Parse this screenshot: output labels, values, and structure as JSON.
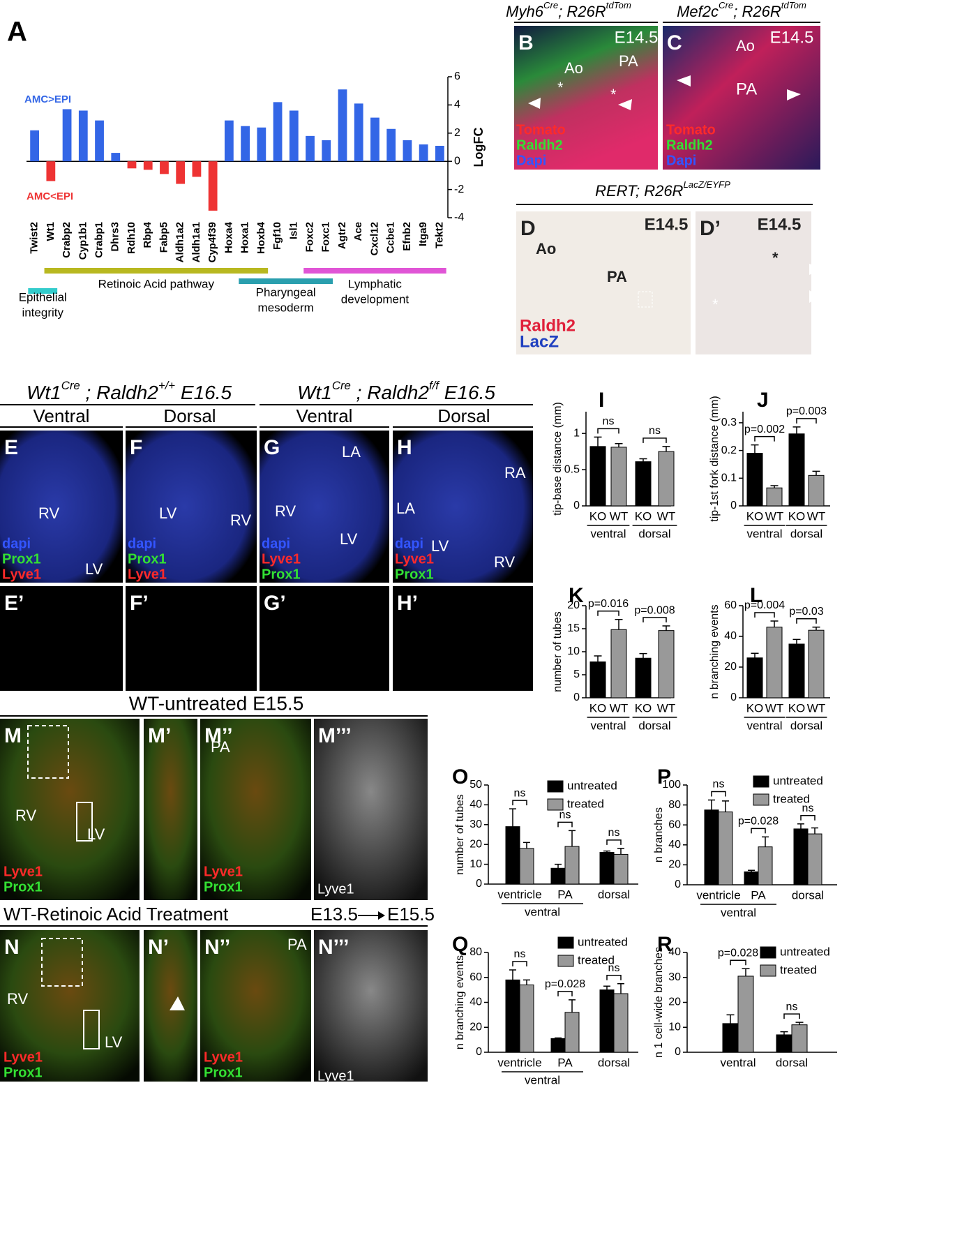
{
  "chart_data": [
    {
      "type": "bar",
      "panel": "A",
      "ylabel": "LogFC",
      "categories": [
        "Twist2",
        "Wt1",
        "Crabp2",
        "Cyp1b1",
        "Crabp1",
        "Dhrs3",
        "Rdh10",
        "Rbp4",
        "Fabp5",
        "Aldh1a2",
        "Aldh1a1",
        "Cyp4f39",
        "Hoxa4",
        "Hoxa1",
        "Hoxb4",
        "Fgf10",
        "Isl1",
        "Foxc2",
        "Foxc1",
        "Agtr2",
        "Ace",
        "Cxcl12",
        "Ccbe1",
        "Efnb2",
        "Itga9",
        "Tekt2"
      ],
      "values": [
        2.2,
        -1.4,
        3.7,
        3.6,
        2.9,
        0.6,
        -0.5,
        -0.6,
        -0.9,
        -1.6,
        -1.1,
        -3.5,
        2.9,
        2.5,
        2.4,
        4.2,
        3.6,
        1.8,
        1.5,
        5.1,
        4.1,
        3.1,
        2.3,
        1.5,
        1.2,
        1.1
      ],
      "positive_color": "#3366e6",
      "negative_color": "#ee3333",
      "ylim": [
        -4,
        6
      ],
      "yticks": [
        -4,
        -2,
        0,
        2,
        4,
        6
      ],
      "y_axis_side": "right",
      "annotations": [
        {
          "text": "AMC>EPI",
          "color": "#3366e6"
        },
        {
          "text": "AMC<EPI",
          "color": "#ee3333"
        }
      ],
      "groups": [
        {
          "label": [
            "Epithelial",
            "integrity"
          ],
          "from": 0,
          "to": 1,
          "color": "#33cccc"
        },
        {
          "label": [
            "Retinoic Acid pathway"
          ],
          "from": 1,
          "to": 14,
          "color": "#b8b820"
        },
        {
          "label": [
            "Pharyngeal",
            "mesoderm"
          ],
          "from": 13,
          "to": 18,
          "color": "#2a9fae"
        },
        {
          "label": [
            "Lymphatic",
            "development"
          ],
          "from": 17,
          "to": 25,
          "color": "#e055d6"
        }
      ]
    },
    {
      "type": "bar",
      "panel": "I",
      "ylabel": "tip-base distance (mm)",
      "categories": [
        "KO",
        "WT",
        "KO",
        "WT"
      ],
      "values": [
        0.82,
        0.81,
        0.61,
        0.75
      ],
      "errors": [
        0.13,
        0.05,
        0.04,
        0.07
      ],
      "colors": [
        "#000000",
        "#999999",
        "#000000",
        "#999999"
      ],
      "ylim": [
        0,
        1.3
      ],
      "yticks": [
        0,
        0.5,
        1
      ],
      "groups": [
        {
          "label": [
            "ventral"
          ],
          "from": 0,
          "to": 1
        },
        {
          "label": [
            "dorsal"
          ],
          "from": 2,
          "to": 3
        }
      ],
      "annotations": [
        {
          "text": "ns",
          "from": 0,
          "to": 1
        },
        {
          "text": "ns",
          "from": 2,
          "to": 3
        }
      ]
    },
    {
      "type": "bar",
      "panel": "J",
      "ylabel": "tip-1st fork distance (mm)",
      "categories": [
        "KO",
        "WT",
        "KO",
        "WT"
      ],
      "values": [
        0.19,
        0.065,
        0.26,
        0.11
      ],
      "errors": [
        0.03,
        0.008,
        0.025,
        0.015
      ],
      "colors": [
        "#000000",
        "#999999",
        "#000000",
        "#999999"
      ],
      "ylim": [
        0,
        0.34
      ],
      "yticks": [
        0,
        0.1,
        0.2,
        0.3
      ],
      "groups": [
        {
          "label": [
            "ventral"
          ],
          "from": 0,
          "to": 1
        },
        {
          "label": [
            "dorsal"
          ],
          "from": 2,
          "to": 3
        }
      ],
      "annotations": [
        {
          "text": "p=0.002",
          "from": 0,
          "to": 1
        },
        {
          "text": "p=0.003",
          "from": 2,
          "to": 3
        }
      ]
    },
    {
      "type": "bar",
      "panel": "K",
      "ylabel": "number of tubes",
      "categories": [
        "KO",
        "WT",
        "KO",
        "WT"
      ],
      "values": [
        7.8,
        14.8,
        8.6,
        14.6
      ],
      "errors": [
        1.3,
        2.2,
        1.0,
        1.0
      ],
      "colors": [
        "#000000",
        "#999999",
        "#000000",
        "#999999"
      ],
      "ylim": [
        0,
        20
      ],
      "yticks": [
        0,
        5,
        10,
        15,
        20
      ],
      "groups": [
        {
          "label": [
            "ventral"
          ],
          "from": 0,
          "to": 1
        },
        {
          "label": [
            "dorsal"
          ],
          "from": 2,
          "to": 3
        }
      ],
      "annotations": [
        {
          "text": "p=0.016",
          "from": 0,
          "to": 1
        },
        {
          "text": "p=0.008",
          "from": 2,
          "to": 3
        }
      ]
    },
    {
      "type": "bar",
      "panel": "L",
      "ylabel": "n branching events",
      "categories": [
        "KO",
        "WT",
        "KO",
        "WT"
      ],
      "values": [
        26,
        46,
        35,
        44
      ],
      "errors": [
        3,
        4,
        3,
        2
      ],
      "colors": [
        "#000000",
        "#999999",
        "#000000",
        "#999999"
      ],
      "ylim": [
        0,
        60
      ],
      "yticks": [
        0,
        20,
        40,
        60
      ],
      "groups": [
        {
          "label": [
            "ventral"
          ],
          "from": 0,
          "to": 1
        },
        {
          "label": [
            "dorsal"
          ],
          "from": 2,
          "to": 3
        }
      ],
      "annotations": [
        {
          "text": "p=0.004",
          "from": 0,
          "to": 1
        },
        {
          "text": "p=0.03",
          "from": 2,
          "to": 3
        }
      ]
    },
    {
      "type": "bar",
      "panel": "O",
      "ylabel": "number of tubes",
      "categories": [
        "ventricle",
        "PA",
        "dorsal"
      ],
      "series": [
        {
          "name": "untreated",
          "color": "#000000",
          "values": [
            29,
            8,
            16
          ],
          "errors": [
            9,
            2,
            0.7
          ]
        },
        {
          "name": "treated",
          "color": "#999999",
          "values": [
            18,
            19,
            15
          ],
          "errors": [
            3,
            8,
            3
          ]
        }
      ],
      "ylim": [
        0,
        50
      ],
      "yticks": [
        0,
        10,
        20,
        30,
        40,
        50
      ],
      "legend": "upper right",
      "groups": [
        {
          "label": [
            "ventral"
          ],
          "from": 0,
          "to": 1
        }
      ],
      "annotations": [
        {
          "text": "ns",
          "category": 0
        },
        {
          "text": "ns",
          "category": 1
        },
        {
          "text": "ns",
          "category": 2
        }
      ]
    },
    {
      "type": "bar",
      "panel": "P",
      "ylabel": "n branches",
      "categories": [
        "ventricle",
        "PA",
        "dorsal"
      ],
      "series": [
        {
          "name": "untreated",
          "color": "#000000",
          "values": [
            75,
            13,
            56
          ],
          "errors": [
            10,
            1.5,
            5
          ]
        },
        {
          "name": "treated",
          "color": "#999999",
          "values": [
            73,
            38,
            51
          ],
          "errors": [
            11,
            10,
            6
          ]
        }
      ],
      "ylim": [
        0,
        100
      ],
      "yticks": [
        0,
        20,
        40,
        60,
        80,
        100
      ],
      "legend": "upper right",
      "groups": [
        {
          "label": [
            "ventral"
          ],
          "from": 0,
          "to": 1
        }
      ],
      "annotations": [
        {
          "text": "ns",
          "category": 0
        },
        {
          "text": "p=0.028",
          "category": 1
        },
        {
          "text": "ns",
          "category": 2
        }
      ]
    },
    {
      "type": "bar",
      "panel": "Q",
      "ylabel": "n branching events",
      "categories": [
        "ventricle",
        "PA",
        "dorsal"
      ],
      "series": [
        {
          "name": "untreated",
          "color": "#000000",
          "values": [
            58,
            11,
            50
          ],
          "errors": [
            8,
            0.5,
            3
          ]
        },
        {
          "name": "treated",
          "color": "#999999",
          "values": [
            54,
            32,
            47
          ],
          "errors": [
            4,
            10,
            8
          ]
        }
      ],
      "ylim": [
        0,
        80
      ],
      "yticks": [
        0,
        20,
        40,
        60,
        80
      ],
      "legend": "upper right",
      "groups": [
        {
          "label": [
            "ventral"
          ],
          "from": 0,
          "to": 1
        }
      ],
      "annotations": [
        {
          "text": "ns",
          "category": 0
        },
        {
          "text": "p=0.028",
          "category": 1
        },
        {
          "text": "ns",
          "category": 2
        }
      ]
    },
    {
      "type": "bar",
      "panel": "R",
      "ylabel": "n 1 cell-wide branches",
      "categories": [
        "ventral",
        "dorsal"
      ],
      "series": [
        {
          "name": "untreated",
          "color": "#000000",
          "values": [
            11.5,
            7
          ],
          "errors": [
            3.5,
            1.2
          ]
        },
        {
          "name": "treated",
          "color": "#999999",
          "values": [
            30.5,
            11
          ],
          "errors": [
            3,
            1
          ]
        }
      ],
      "ylim": [
        0,
        40
      ],
      "yticks": [
        0,
        10,
        20,
        30,
        40
      ],
      "legend": "upper right",
      "annotations": [
        {
          "text": "p=0.028",
          "category": 0
        },
        {
          "text": "ns",
          "category": 1
        }
      ]
    }
  ],
  "figure": {
    "headers": [
      [
        {
          "text": "Myh6"
        },
        {
          "text": "Cre",
          "sup": true
        },
        {
          "text": "; R26R"
        },
        {
          "text": "tdTom",
          "sup": true
        }
      ],
      [
        {
          "text": "Mef2c"
        },
        {
          "text": "Cre",
          "sup": true
        },
        {
          "text": "; R26R"
        },
        {
          "text": "tdTom",
          "sup": true
        }
      ],
      [
        {
          "text": "RERT; R26R"
        },
        {
          "text": "LacZ/EYFP",
          "sup": true
        }
      ],
      [
        {
          "text": "Wt1"
        },
        {
          "text": "Cre",
          "sup": true
        },
        {
          "text": " ; Raldh2"
        },
        {
          "text": "+/+",
          "sup": true
        },
        {
          "text": " E16.5"
        }
      ],
      [
        {
          "text": "Wt1"
        },
        {
          "text": "Cre",
          "sup": true
        },
        {
          "text": " ; Raldh2"
        },
        {
          "text": "f/f",
          "sup": true
        },
        {
          "text": " E16.5"
        }
      ]
    ],
    "titles": [
      "Ventral",
      "Dorsal",
      "Ventral",
      "Dorsal",
      "WT-untreated E15.5",
      "WT-Retinoic Acid Treatment",
      "E13.5",
      "E15.5"
    ],
    "panels": [
      {
        "label": "B",
        "texts": [
          "E14.5",
          "Ao",
          "PA",
          "*",
          "*",
          "Tomato",
          "Raldh2",
          "Dapi"
        ]
      },
      {
        "label": "C",
        "texts": [
          "E14.5",
          "Ao",
          "PA",
          "Tomato",
          "Raldh2",
          "Dapi"
        ]
      },
      {
        "label": "D",
        "texts": [
          "E14.5",
          "Ao",
          "PA",
          "Raldh2",
          "LacZ"
        ]
      },
      {
        "label": "D’",
        "texts": [
          "E14.5",
          "*",
          "*"
        ]
      },
      {
        "label": "E",
        "texts": [
          "RV",
          "LV",
          "dapi",
          "Prox1",
          "Lyve1"
        ]
      },
      {
        "label": "F",
        "texts": [
          "LV",
          "RV",
          "dapi",
          "Prox1",
          "Lyve1"
        ]
      },
      {
        "label": "G",
        "texts": [
          "LA",
          "RV",
          "LV",
          "dapi",
          "Lyve1",
          "Prox1"
        ]
      },
      {
        "label": "H",
        "texts": [
          "RA",
          "LA",
          "LV",
          "RV",
          "dapi",
          "Lyve1",
          "Prox1"
        ]
      },
      {
        "label": "E’",
        "texts": []
      },
      {
        "label": "F’",
        "texts": []
      },
      {
        "label": "G’",
        "texts": []
      },
      {
        "label": "H’",
        "texts": []
      },
      {
        "label": "M",
        "texts": [
          "RV",
          "LV",
          "Lyve1",
          "Prox1"
        ]
      },
      {
        "label": "M’",
        "texts": []
      },
      {
        "label": "M’’",
        "texts": [
          "PA",
          "Lyve1",
          "Prox1"
        ]
      },
      {
        "label": "M’’’",
        "texts": [
          "Lyve1"
        ]
      },
      {
        "label": "N",
        "texts": [
          "RV",
          "LV",
          "Lyve1",
          "Prox1"
        ]
      },
      {
        "label": "N’",
        "texts": []
      },
      {
        "label": "N’’",
        "texts": [
          "PA",
          "Lyve1",
          "Prox1"
        ]
      },
      {
        "label": "N’’’",
        "texts": [
          "Lyve1"
        ]
      }
    ]
  }
}
